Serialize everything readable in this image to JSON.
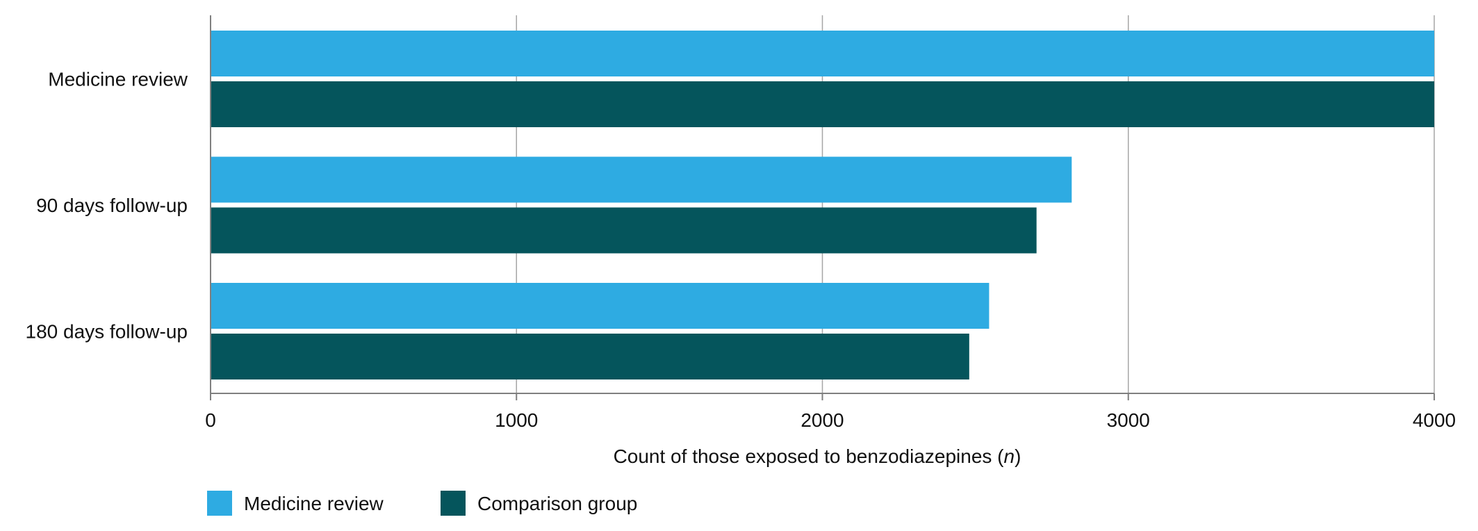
{
  "chart_data": {
    "type": "bar",
    "orientation": "horizontal",
    "categories": [
      "Medicine review",
      "90 days follow-up",
      "180 days follow-up"
    ],
    "series": [
      {
        "name": "Medicine review",
        "color": "#2EABE2",
        "values": [
          4000,
          2815,
          2545
        ]
      },
      {
        "name": "Comparison group",
        "color": "#05555C",
        "values": [
          4000,
          2700,
          2480
        ]
      }
    ],
    "xlabel": "Count of those exposed to benzodiazepines (n)",
    "xlabel_parts": {
      "before": "Count of those exposed to benzodiazepines (",
      "italic": "n",
      "after": ")"
    },
    "xlim": [
      0,
      4000
    ],
    "xticks": [
      0,
      1000,
      2000,
      3000,
      4000
    ],
    "grid": true,
    "legend_position": "bottom-left"
  }
}
